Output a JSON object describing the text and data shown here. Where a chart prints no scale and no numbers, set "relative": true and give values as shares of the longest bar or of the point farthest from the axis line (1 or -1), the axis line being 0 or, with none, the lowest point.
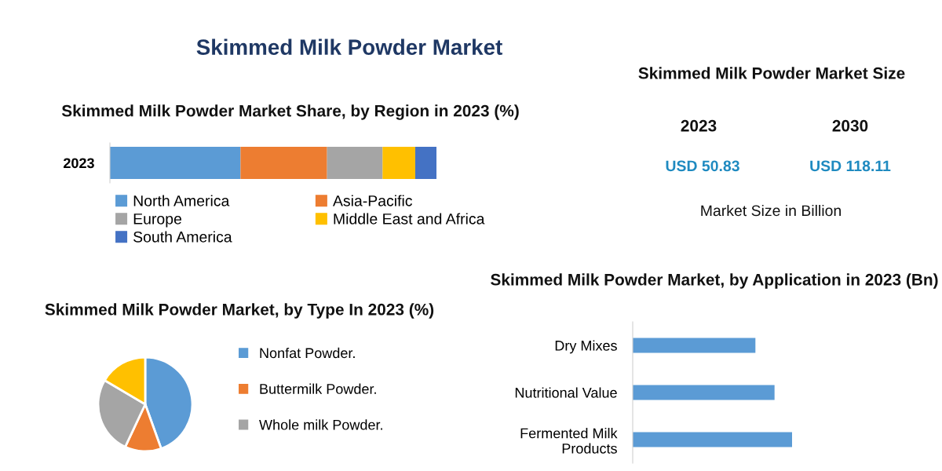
{
  "chart_data": [
    {
      "type": "other",
      "title": "Skimmed Milk Powder Market"
    },
    {
      "type": "bar",
      "title": "Skimmed Milk Powder Market Share, by Region in 2023 (%)",
      "orientation": "horizontal",
      "stacked": true,
      "relative": true,
      "categories": [
        "2023"
      ],
      "legend": "bottom",
      "series": [
        {
          "name": "North America",
          "color": "#5b9bd5",
          "values": [
            0.4
          ]
        },
        {
          "name": "Asia-Pacific",
          "color": "#ed7d31",
          "values": [
            0.265
          ]
        },
        {
          "name": "Europe",
          "color": "#a5a5a5",
          "values": [
            0.17
          ]
        },
        {
          "name": "Middle East and Africa",
          "color": "#ffc000",
          "values": [
            0.1
          ]
        },
        {
          "name": "South America",
          "color": "#4472c4",
          "values": [
            0.065
          ]
        }
      ]
    },
    {
      "type": "other",
      "title": "Skimmed Milk Powder Market Size",
      "annotations": [
        "2023",
        "2030",
        "USD 50.83",
        "USD 118.11",
        "Market Size in Billion"
      ]
    },
    {
      "type": "pie",
      "title": "Skimmed Milk Powder Market, by Type In 2023 (%)",
      "categories": [
        "Nonfat Powder.",
        "Buttermilk Powder.",
        "Whole milk Powder.",
        null
      ],
      "values": [
        44.5,
        12.5,
        26.5,
        16.5
      ],
      "colors": [
        "#5b9bd5",
        "#ed7d31",
        "#a5a5a5",
        "#ffc000"
      ],
      "legend": "right"
    },
    {
      "type": "bar",
      "title": "Skimmed Milk Powder Market, by Application in 2023 (Bn)",
      "orientation": "horizontal",
      "relative": true,
      "categories": [
        "Dry Mixes",
        "Nutritional Value",
        "Fermented Milk\nProducts"
      ],
      "values": [
        0.77,
        0.89,
        1
      ],
      "color": "#5b9bd5"
    }
  ]
}
